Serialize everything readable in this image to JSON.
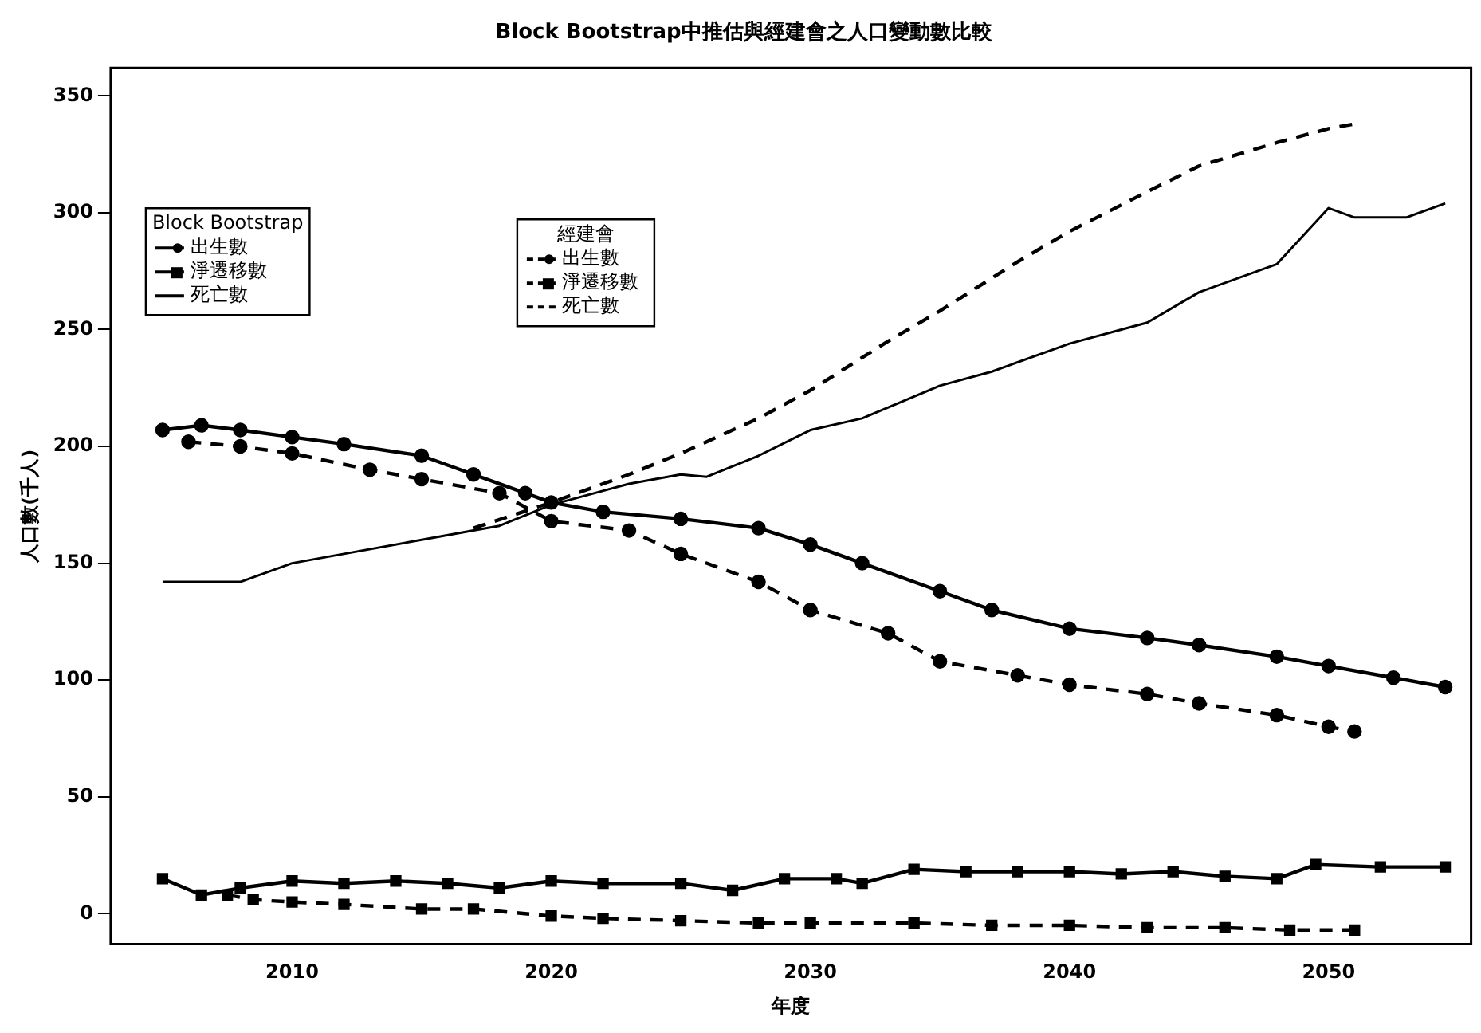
{
  "chart_data": {
    "type": "line",
    "title": "Block Bootstrap中推估與經建會之人口變動數比較",
    "xlabel": "年度",
    "ylabel": "人口數(千人)",
    "xlim": [
      2003,
      2055.5
    ],
    "xticks": [
      2010,
      2020,
      2030,
      2040,
      2050
    ],
    "ylim": [
      -13,
      362
    ],
    "yticks": [
      0,
      50,
      100,
      150,
      200,
      250,
      300,
      350
    ],
    "grid": false,
    "legend": "top left",
    "legend_title": [
      "Block Bootstrap",
      "經建會"
    ],
    "series": [
      {
        "name": "出生數",
        "color": "#000000",
        "marker": "circle",
        "line_style": "solid",
        "x": [
          2005,
          2006.5,
          2008,
          2010,
          2012,
          2015,
          2017,
          2019,
          2020,
          2022,
          2025,
          2028,
          2030,
          2032,
          2035,
          2037,
          2040,
          2043,
          2045,
          2048,
          2050,
          2052.5,
          2054.5
        ],
        "values": [
          207,
          209,
          207,
          204,
          201,
          196,
          188,
          180,
          176,
          172,
          169,
          165,
          158,
          150,
          138,
          130,
          122,
          118,
          115,
          110,
          106,
          101,
          97
        ]
      },
      {
        "name": "淨遷移數",
        "color": "#000000",
        "marker": "square",
        "line_style": "solid",
        "x": [
          2005,
          2006.5,
          2008,
          2010,
          2012,
          2014,
          2016,
          2018,
          2020,
          2022,
          2025,
          2027,
          2029,
          2031,
          2032,
          2034,
          2036,
          2038,
          2040,
          2042,
          2044,
          2046,
          2048,
          2049.5,
          2052,
          2054.5
        ],
        "values": [
          15,
          8,
          11,
          14,
          13,
          14,
          13,
          11,
          14,
          13,
          13,
          10,
          15,
          15,
          13,
          19,
          18,
          18,
          18,
          17,
          18,
          16,
          15,
          21,
          20,
          20
        ]
      },
      {
        "name": "死亡數",
        "color": "#000000",
        "marker": "none",
        "line_style": "solid",
        "x": [
          2005,
          2008,
          2010,
          2012,
          2015,
          2017,
          2018,
          2020,
          2023,
          2025,
          2026,
          2028,
          2030,
          2032,
          2035,
          2037,
          2040,
          2042,
          2043,
          2045,
          2048,
          2050,
          2051,
          2053,
          2054.5
        ],
        "values": [
          142,
          142,
          150,
          154,
          160,
          164,
          166,
          175,
          184,
          188,
          187,
          196,
          207,
          212,
          226,
          232,
          244,
          250,
          253,
          266,
          278,
          302,
          298,
          298,
          304
        ]
      },
      {
        "name": "出生數",
        "color": "#000000",
        "marker": "circle",
        "line_style": "dashed",
        "x": [
          2006,
          2008,
          2010,
          2013,
          2015,
          2018,
          2020,
          2023,
          2025,
          2028,
          2030,
          2033,
          2035,
          2038,
          2040,
          2043,
          2045,
          2048,
          2050,
          2051
        ],
        "values": [
          202,
          200,
          197,
          190,
          186,
          180,
          168,
          164,
          154,
          142,
          130,
          120,
          108,
          102,
          98,
          94,
          90,
          85,
          80,
          78
        ]
      },
      {
        "name": "淨遷移數",
        "color": "#000000",
        "marker": "square",
        "line_style": "dashed",
        "x": [
          2007.5,
          2008.5,
          2010,
          2012,
          2015,
          2017,
          2020,
          2022,
          2025,
          2028,
          2030,
          2034,
          2037,
          2040,
          2043,
          2046,
          2048.5,
          2051
        ],
        "values": [
          8,
          6,
          5,
          4,
          2,
          2,
          -1,
          -2,
          -3,
          -4,
          -4,
          -4,
          -5,
          -5,
          -6,
          -6,
          -7,
          -7
        ]
      },
      {
        "name": "死亡數",
        "color": "#000000",
        "marker": "none",
        "line_style": "dashed",
        "x": [
          2017,
          2020,
          2023,
          2025,
          2028,
          2030,
          2033,
          2035,
          2038,
          2040,
          2043,
          2045,
          2048,
          2050,
          2051
        ],
        "values": [
          165,
          176,
          188,
          197,
          212,
          224,
          245,
          258,
          279,
          292,
          309,
          320,
          330,
          336,
          338
        ]
      }
    ]
  }
}
